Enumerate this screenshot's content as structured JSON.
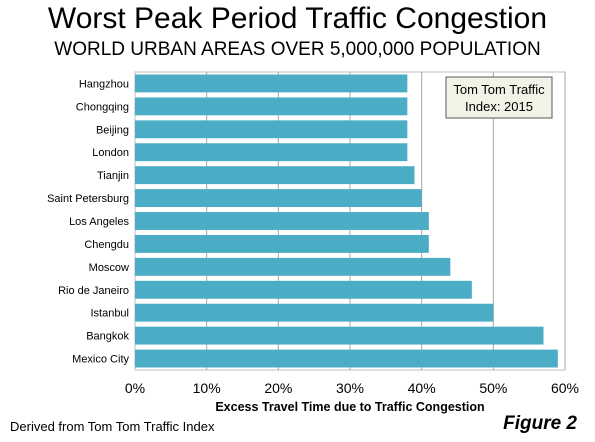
{
  "chart_data": {
    "type": "bar",
    "orientation": "horizontal",
    "title": "Worst Peak Period Traffic Congestion",
    "subtitle": "WORLD URBAN AREAS OVER 5,000,000 POPULATION",
    "xlabel": "Excess Travel Time due to Traffic Congestion",
    "ylabel": "",
    "categories": [
      "Hangzhou",
      "Chongqing",
      "Beijing",
      "London",
      "Tianjin",
      "Saint Petersburg",
      "Los Angeles",
      "Chengdu",
      "Moscow",
      "Rio de Janeiro",
      "Istanbul",
      "Bangkok",
      "Mexico City"
    ],
    "values": [
      38,
      38,
      38,
      38,
      39,
      40,
      41,
      41,
      44,
      47,
      50,
      57,
      59
    ],
    "value_unit": "%",
    "xlim": [
      0,
      60
    ],
    "xticks": [
      0,
      10,
      20,
      30,
      40,
      50,
      60
    ],
    "xtick_labels": [
      "0%",
      "10%",
      "20%",
      "30%",
      "40%",
      "50%",
      "60%"
    ],
    "grid": "vertical",
    "bar_color": "#4BACC6",
    "annotation": "Tom Tom Traffic Index: 2015",
    "legend": "none"
  },
  "footer": {
    "source": "Derived from Tom Tom Traffic Index",
    "figure_label": "Figure 2"
  }
}
